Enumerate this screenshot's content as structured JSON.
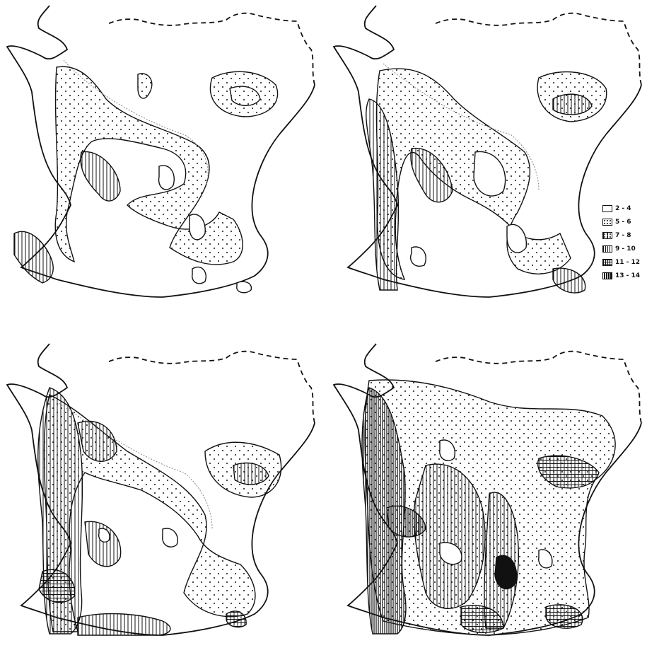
{
  "legend": {
    "items": [
      {
        "label": "2 - 4",
        "pattern": "blank"
      },
      {
        "label": "5 - 6",
        "pattern": "dots"
      },
      {
        "label": "7 - 8",
        "pattern": "dots-lines"
      },
      {
        "label": "9 - 10",
        "pattern": "vertical"
      },
      {
        "label": "11 - 12",
        "pattern": "grid"
      },
      {
        "label": "13 - 14",
        "pattern": "dense"
      }
    ]
  },
  "colors": {
    "ink": "#111111",
    "paper": "#ffffff",
    "boundary_dotted": "#888888"
  }
}
